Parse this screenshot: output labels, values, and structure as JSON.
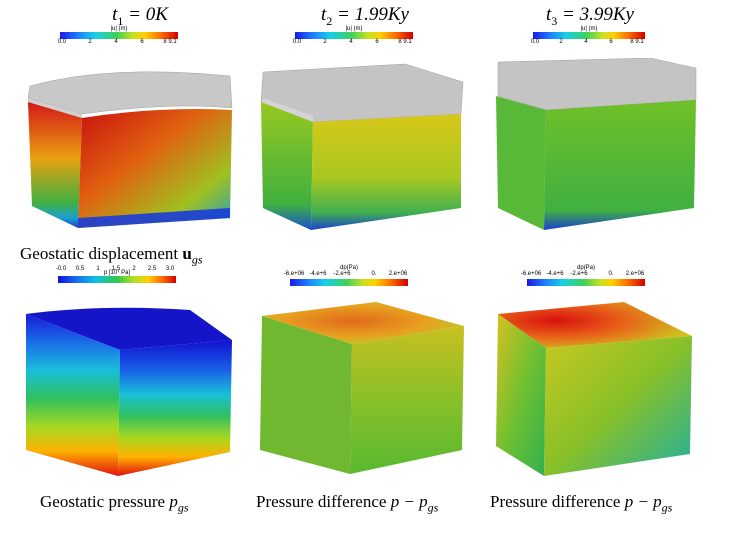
{
  "columns": [
    {
      "time_label_var": "t",
      "time_label_sub": "1",
      "time_label_value": "= 0K"
    },
    {
      "time_label_var": "t",
      "time_label_sub": "2",
      "time_label_value": "= 1.99Ky"
    },
    {
      "time_label_var": "t",
      "time_label_sub": "3",
      "time_label_value": "= 3.99Ky"
    }
  ],
  "colorbars": {
    "displacement": {
      "title": "|u| (m)",
      "ticks": [
        "0.0",
        "2",
        "4",
        "6",
        "8 9.1"
      ]
    },
    "pressure": {
      "title": "p  [10⁷  Pa]",
      "ticks": [
        "-0.0",
        "0.5",
        "1",
        "1.5",
        "2",
        "2.5",
        "3.0"
      ]
    },
    "dp": {
      "title": "dp(Pa)",
      "ticks": [
        "-6.e+06",
        "-4.e+6",
        "-2.e+6",
        "0.",
        "2.e+06"
      ]
    }
  },
  "captions": {
    "displacement": "Geostatic displacement",
    "displacement_symbol": "u",
    "displacement_sub": "gs",
    "pressure": "Geostatic pressure",
    "pressure_symbol": "p",
    "pressure_sub": "gs",
    "diff1": "Pressure difference",
    "diff1_symbol": "p − p",
    "diff1_sub": "gs",
    "diff2": "Pressure difference",
    "diff2_symbol": "p − p",
    "diff2_sub": "gs"
  }
}
